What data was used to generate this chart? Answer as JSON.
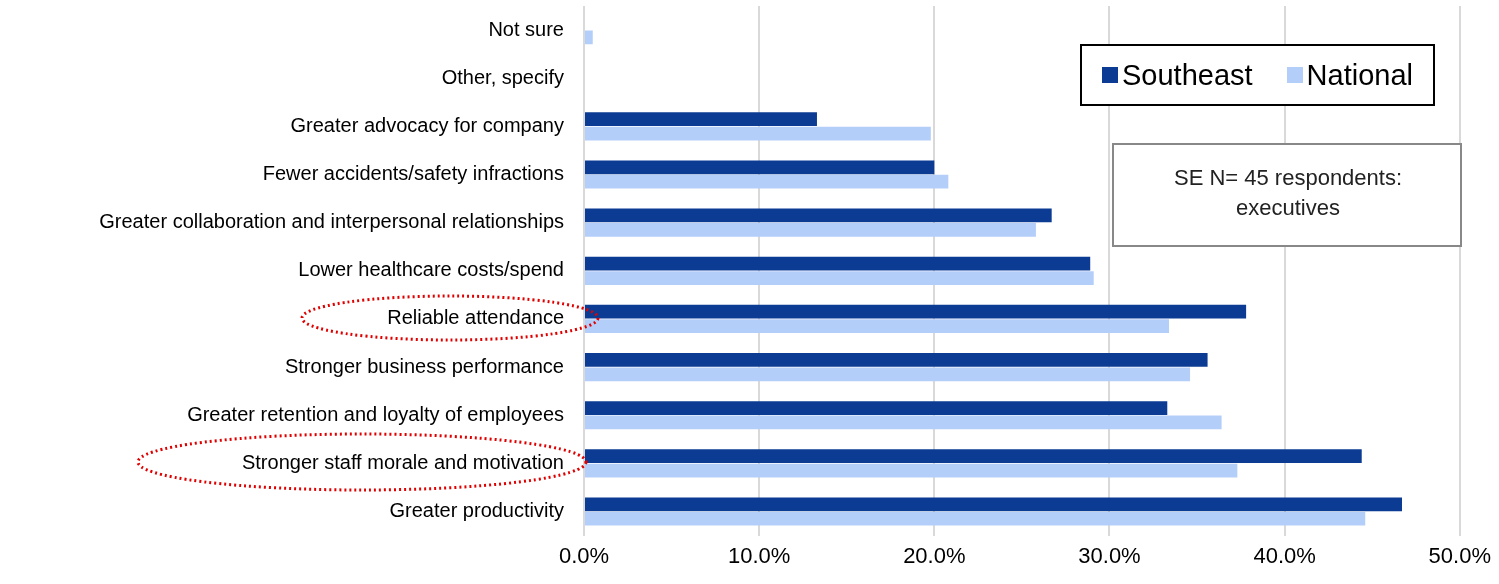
{
  "chart_data": {
    "type": "bar",
    "orientation": "horizontal",
    "categories": [
      "Not sure",
      "Other, specify",
      "Greater advocacy for company",
      "Fewer accidents/safety infractions",
      "Greater collaboration and interpersonal relationships",
      "Lower healthcare costs/spend",
      "Reliable attendance",
      "Stronger business performance",
      "Greater retention and loyalty of employees",
      "Stronger staff morale and motivation",
      "Greater productivity"
    ],
    "series": [
      {
        "name": "Southeast",
        "color": "#0b3b93",
        "values": [
          null,
          null,
          13.3,
          20.0,
          26.7,
          28.9,
          37.8,
          35.6,
          33.3,
          44.4,
          46.7
        ]
      },
      {
        "name": "National",
        "color": "#b4cefa",
        "values": [
          0.5,
          null,
          19.8,
          20.8,
          25.8,
          29.1,
          33.4,
          34.6,
          36.4,
          37.3,
          44.6
        ]
      }
    ],
    "xlim": [
      0,
      50
    ],
    "xticks": [
      {
        "value": 0,
        "label": "0.0%"
      },
      {
        "value": 10,
        "label": "10.0%"
      },
      {
        "value": 20,
        "label": "20.0%"
      },
      {
        "value": 30,
        "label": "30.0%"
      },
      {
        "value": 40,
        "label": "40.0%"
      },
      {
        "value": 50,
        "label": "50.0%"
      }
    ],
    "grid": "x",
    "legend": "top right",
    "annotations": [
      "SE N= 45   respondents:\nexecutives"
    ]
  }
}
